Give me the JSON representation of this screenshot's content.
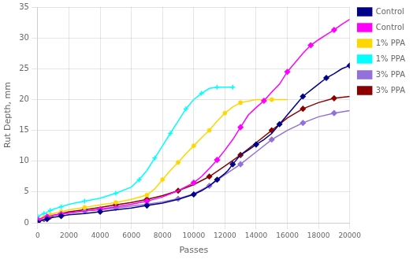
{
  "chart_data": {
    "type": "line",
    "xlabel": "Passes",
    "ylabel": "Rut Depth, mm",
    "xlim": [
      0,
      20000
    ],
    "ylim": [
      0,
      35
    ],
    "xticks": [
      0,
      2000,
      4000,
      6000,
      8000,
      10000,
      12000,
      14000,
      16000,
      18000,
      20000
    ],
    "yticks": [
      0,
      5,
      10,
      15,
      20,
      25,
      30,
      35
    ],
    "grid": true,
    "legend": "right",
    "series": [
      {
        "name": "Control",
        "color": "#00008B",
        "marker": "diamond",
        "x": [
          0,
          200,
          400,
          600,
          800,
          1000,
          1500,
          2000,
          3000,
          4000,
          5000,
          6000,
          7000,
          8000,
          9000,
          10000,
          10500,
          11000,
          11500,
          12000,
          12200,
          12500,
          13000,
          13500,
          14000,
          14500,
          15000,
          15500,
          16000,
          16500,
          17000,
          17500,
          18000,
          18500,
          19000,
          19500,
          20000
        ],
        "values": [
          0,
          0.3,
          0.5,
          0.6,
          0.8,
          0.9,
          1.1,
          1.3,
          1.5,
          1.8,
          2.1,
          2.4,
          2.8,
          3.2,
          3.8,
          4.6,
          5.2,
          6.0,
          7.0,
          8.0,
          8.5,
          9.5,
          11.0,
          11.8,
          12.7,
          13.5,
          14.5,
          16.0,
          17.5,
          19.0,
          20.5,
          21.5,
          22.5,
          23.5,
          24.2,
          25.0,
          25.5
        ]
      },
      {
        "name": "Control",
        "color": "#FF00FF",
        "marker": "diamond",
        "x": [
          0,
          200,
          400,
          600,
          800,
          1000,
          1500,
          2000,
          3000,
          4000,
          5000,
          6000,
          7000,
          8000,
          9000,
          10000,
          10500,
          11000,
          11500,
          12000,
          12500,
          13000,
          13500,
          14000,
          14500,
          15000,
          15500,
          16000,
          16500,
          17000,
          17500,
          18000,
          18500,
          19000,
          19500,
          20000
        ],
        "values": [
          0.5,
          0.7,
          0.9,
          1.0,
          1.1,
          1.2,
          1.4,
          1.6,
          1.9,
          2.2,
          2.6,
          3.0,
          3.5,
          4.2,
          5.2,
          6.5,
          7.5,
          8.8,
          10.2,
          11.8,
          13.5,
          15.5,
          17.5,
          18.7,
          19.8,
          21.2,
          22.5,
          24.5,
          26.0,
          27.5,
          28.8,
          29.7,
          30.5,
          31.3,
          32.2,
          33.0
        ]
      },
      {
        "name": "1% PPA",
        "color": "#FFD700",
        "marker": "star",
        "x": [
          0,
          200,
          400,
          600,
          800,
          1000,
          1500,
          2000,
          3000,
          4000,
          5000,
          6000,
          7000,
          7500,
          8000,
          8500,
          9000,
          9500,
          10000,
          10500,
          11000,
          11500,
          12000,
          12500,
          13000,
          14000,
          15000,
          16000
        ],
        "values": [
          0.5,
          0.7,
          0.9,
          1.1,
          1.3,
          1.5,
          1.8,
          2.1,
          2.5,
          2.9,
          3.3,
          3.8,
          4.5,
          5.5,
          7.0,
          8.5,
          9.8,
          11.2,
          12.5,
          13.8,
          15.0,
          16.5,
          17.8,
          18.8,
          19.5,
          20.0,
          20.0,
          20.0
        ]
      },
      {
        "name": "1% PPA",
        "color": "#00FFFF",
        "marker": "plus",
        "x": [
          0,
          200,
          400,
          600,
          800,
          1000,
          1500,
          2000,
          3000,
          4000,
          5000,
          6000,
          6500,
          7000,
          7500,
          8000,
          8500,
          9000,
          9500,
          10000,
          10500,
          11000,
          11500,
          12000,
          12500
        ],
        "values": [
          1.0,
          1.3,
          1.5,
          1.7,
          2.0,
          2.2,
          2.6,
          3.0,
          3.5,
          4.0,
          4.8,
          5.8,
          7.0,
          8.5,
          10.5,
          12.5,
          14.5,
          16.5,
          18.5,
          20.0,
          21.0,
          21.8,
          22.0,
          22.0,
          22.0
        ]
      },
      {
        "name": "3% PPA",
        "color": "#9370DB",
        "marker": "diamond",
        "x": [
          0,
          200,
          400,
          600,
          800,
          1000,
          1500,
          2000,
          3000,
          4000,
          5000,
          6000,
          7000,
          8000,
          9000,
          10000,
          11000,
          12000,
          13000,
          14000,
          15000,
          16000,
          17000,
          18000,
          19000,
          20000
        ],
        "values": [
          0.3,
          0.5,
          0.7,
          0.9,
          1.1,
          1.2,
          1.4,
          1.6,
          1.9,
          2.1,
          2.4,
          2.7,
          3.0,
          3.4,
          3.9,
          4.7,
          6.0,
          7.8,
          9.5,
          11.5,
          13.5,
          15.0,
          16.2,
          17.2,
          17.8,
          18.2
        ]
      },
      {
        "name": "3% PPA",
        "color": "#8B0000",
        "marker": "diamond",
        "x": [
          0,
          200,
          400,
          600,
          800,
          1000,
          1500,
          2000,
          3000,
          4000,
          5000,
          6000,
          7000,
          8000,
          9000,
          10000,
          11000,
          12000,
          13000,
          14000,
          15000,
          16000,
          17000,
          18000,
          19000,
          20000
        ],
        "values": [
          0.2,
          0.4,
          0.6,
          0.8,
          1.0,
          1.2,
          1.5,
          1.8,
          2.1,
          2.5,
          2.9,
          3.3,
          3.8,
          4.4,
          5.2,
          6.2,
          7.5,
          9.2,
          11.0,
          13.0,
          15.0,
          17.0,
          18.5,
          19.5,
          20.2,
          20.5
        ]
      }
    ]
  }
}
